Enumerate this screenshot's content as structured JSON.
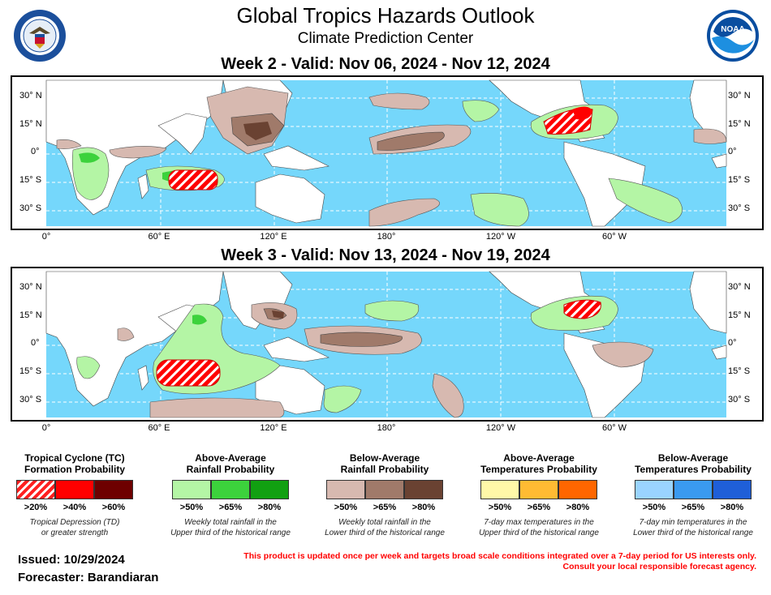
{
  "header": {
    "title": "Global Tropics Hazards Outlook",
    "subtitle": "Climate Prediction Center",
    "left_logo": "commerce-seal-icon",
    "right_logo": "noaa-logo-icon",
    "right_logo_text": "NOAA"
  },
  "maps": [
    {
      "title": "Week 2 - Valid: Nov 06, 2024 - Nov 12, 2024"
    },
    {
      "title": "Week 3 - Valid: Nov 13, 2024 - Nov 19, 2024"
    }
  ],
  "axes": {
    "lat_labels_left": [
      "30° N",
      "15° N",
      "0°",
      "15° S",
      "30° S"
    ],
    "lat_labels_right": [
      "30° N",
      "15° N",
      "0°",
      "15° S",
      "30° S"
    ],
    "lon_labels": [
      "0°",
      "60° E",
      "120° E",
      "180°",
      "120° W",
      "60° W"
    ]
  },
  "colors": {
    "ocean": "#75d7fb",
    "land": "#ffffff",
    "tc": [
      "#ff5050",
      "#ff0000",
      "#6e0000"
    ],
    "wet": [
      "#b4f5a5",
      "#3cd23c",
      "#11a011"
    ],
    "dry": [
      "#d7b9b0",
      "#a07a6a",
      "#6a4232"
    ],
    "warm": [
      "#fff8a8",
      "#ffbb33",
      "#ff6600"
    ],
    "cold": [
      "#9ad4ff",
      "#3a9af0",
      "#1f5fd8"
    ]
  },
  "legend": [
    {
      "title_line1": "Tropical Cyclone (TC)",
      "title_line2": "Formation Probability",
      "levels": [
        ">20%",
        ">40%",
        ">60%"
      ],
      "note_line1": "Tropical Depression (TD)",
      "note_line2": "or greater strength",
      "palette": "tc"
    },
    {
      "title_line1": "Above-Average",
      "title_line2": "Rainfall Probability",
      "levels": [
        ">50%",
        ">65%",
        ">80%"
      ],
      "note_line1": "Weekly total rainfall in the",
      "note_line2": "Upper third of the historical range",
      "palette": "wet"
    },
    {
      "title_line1": "Below-Average",
      "title_line2": "Rainfall Probability",
      "levels": [
        ">50%",
        ">65%",
        ">80%"
      ],
      "note_line1": "Weekly total rainfall in the",
      "note_line2": "Lower third of the historical range",
      "palette": "dry"
    },
    {
      "title_line1": "Above-Average",
      "title_line2": "Temperatures Probability",
      "levels": [
        ">50%",
        ">65%",
        ">80%"
      ],
      "note_line1": "7-day max temperatures in the",
      "note_line2": "Upper third of the historical range",
      "palette": "warm"
    },
    {
      "title_line1": "Below-Average",
      "title_line2": "Temperatures Probability",
      "levels": [
        ">50%",
        ">65%",
        ">80%"
      ],
      "note_line1": "7-day min temperatures in the",
      "note_line2": "Lower third of the historical range",
      "palette": "cold"
    }
  ],
  "footer": {
    "issued": "Issued: 10/29/2024",
    "forecaster": "Forecaster: Barandiaran",
    "disclaimer_line1": "This product is updated once per week and targets broad scale conditions integrated over a 7-day period for US interests only.",
    "disclaimer_line2": "Consult your local responsible forecast agency."
  }
}
